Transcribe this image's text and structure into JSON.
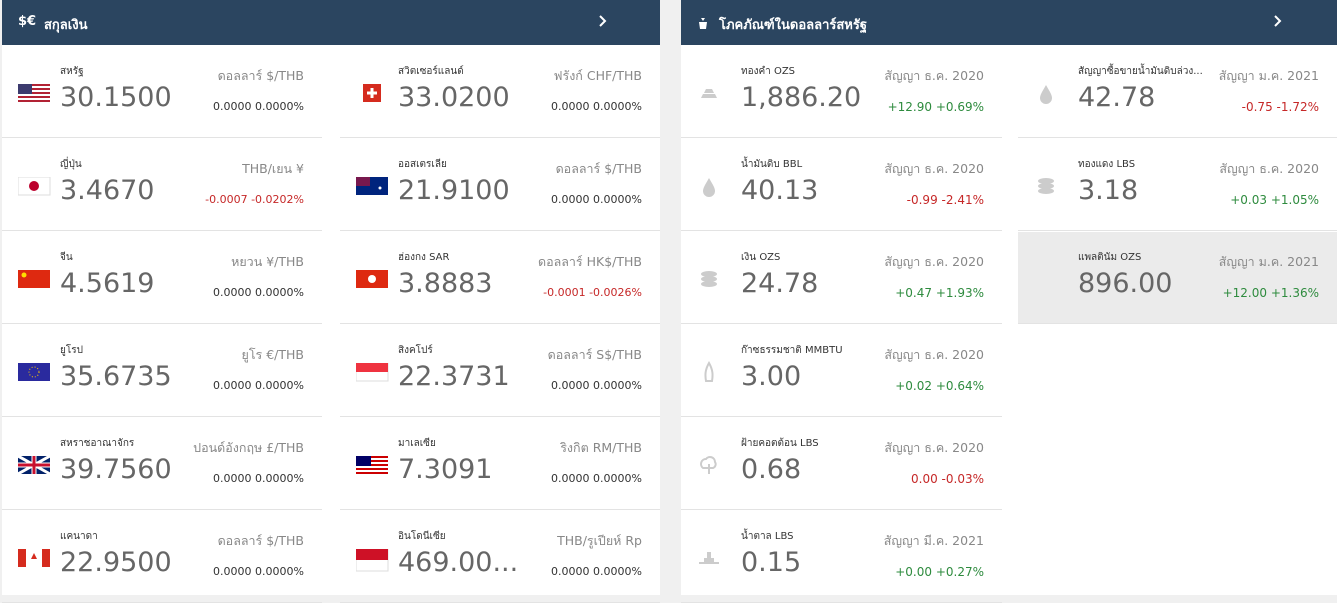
{
  "currency": {
    "icon": "$€",
    "title": "สกุลเงิน",
    "columns": [
      [
        {
          "name": "สหรัฐ",
          "pair": "ดอลลาร์ $/THB",
          "rate": "30.1500",
          "change": "0.0000",
          "percent": "0.0000%"
        },
        {
          "name": "ญี่ปุ่น",
          "pair": "THB/เยน ¥",
          "rate": "3.4670",
          "change": "-0.0007",
          "percent": "-0.0202%"
        },
        {
          "name": "จีน",
          "pair": "หยวน ¥/THB",
          "rate": "4.5619",
          "change": "0.0000",
          "percent": "0.0000%"
        },
        {
          "name": "ยูโรป",
          "pair": "ยูโร €/THB",
          "rate": "35.6735",
          "change": "0.0000",
          "percent": "0.0000%"
        },
        {
          "name": "สหราชอาณาจักร",
          "pair": "ปอนด์อังกฤษ £/THB",
          "rate": "39.7560",
          "change": "0.0000",
          "percent": "0.0000%"
        },
        {
          "name": "แคนาดา",
          "pair": "ดอลลาร์ $/THB",
          "rate": "22.9500",
          "change": "0.0000",
          "percent": "0.0000%"
        }
      ],
      [
        {
          "name": "สวิตเซอร์แลนด์",
          "pair": "ฟรังก์ CHF/THB",
          "rate": "33.0200",
          "change": "0.0000",
          "percent": "0.0000%"
        },
        {
          "name": "ออสเตรเลีย",
          "pair": "ดอลลาร์ $/THB",
          "rate": "21.9100",
          "change": "0.0000",
          "percent": "0.0000%"
        },
        {
          "name": "ฮ่องกง SAR",
          "pair": "ดอลลาร์ HK$/THB",
          "rate": "3.8883",
          "change": "-0.0001",
          "percent": "-0.0026%"
        },
        {
          "name": "สิงคโปร์",
          "pair": "ดอลลาร์ S$/THB",
          "rate": "22.3731",
          "change": "0.0000",
          "percent": "0.0000%"
        },
        {
          "name": "มาเลเซีย",
          "pair": "ริงกิต RM/THB",
          "rate": "7.3091",
          "change": "0.0000",
          "percent": "0.0000%"
        },
        {
          "name": "อินโดนีเซีย",
          "pair": "THB/รูเปียห์ Rp",
          "rate": "469.00...",
          "change": "0.0000",
          "percent": "0.0000%"
        }
      ]
    ]
  },
  "commodity": {
    "title": "โภคภัณฑ์ในดอลลาร์สหรัฐ",
    "columns": [
      [
        {
          "name": "ทองคำ OZS",
          "contract": "สัญญา ธ.ค. 2020",
          "price": "1,886.20",
          "change": "+12.90",
          "percent": "+0.69%"
        },
        {
          "name": "น้ำมันดิบ BBL",
          "contract": "สัญญา ธ.ค. 2020",
          "price": "40.13",
          "change": "-0.99",
          "percent": "-2.41%"
        },
        {
          "name": "เงิน OZS",
          "contract": "สัญญา ธ.ค. 2020",
          "price": "24.78",
          "change": "+0.47",
          "percent": "+1.93%"
        },
        {
          "name": "ก๊าซธรรมชาติ MMBTU",
          "contract": "สัญญา ธ.ค. 2020",
          "price": "3.00",
          "change": "+0.02",
          "percent": "+0.64%"
        },
        {
          "name": "ฝ้ายคอตต้อน LBS",
          "contract": "สัญญา ธ.ค. 2020",
          "price": "0.68",
          "change": "0.00",
          "percent": "-0.03%"
        },
        {
          "name": "น้ำตาล LBS",
          "contract": "สัญญา มี.ค. 2021",
          "price": "0.15",
          "change": "+0.00",
          "percent": "+0.27%"
        }
      ],
      [
        {
          "name": "สัญญาซื้อขายน้ำมันดิบล่วง...",
          "contract": "สัญญา ม.ค. 2021",
          "price": "42.78",
          "change": "-0.75",
          "percent": "-1.72%"
        },
        {
          "name": "ทองแดง LBS",
          "contract": "สัญญา ธ.ค. 2020",
          "price": "3.18",
          "change": "+0.03",
          "percent": "+1.05%"
        },
        {
          "name": "แพลตินัม OZS",
          "contract": "สัญญา ม.ค. 2021",
          "price": "896.00",
          "change": "+12.00",
          "percent": "+1.36%"
        }
      ]
    ]
  }
}
